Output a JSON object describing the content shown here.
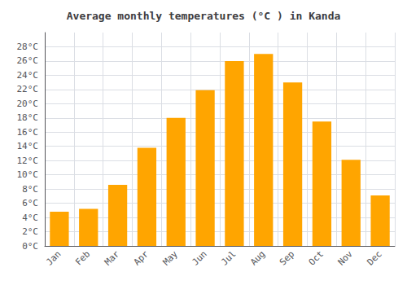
{
  "chart_data": {
    "type": "bar",
    "title": "Average monthly temperatures (°C ) in Kanda",
    "categories": [
      "Jan",
      "Feb",
      "Mar",
      "Apr",
      "May",
      "Jun",
      "Jul",
      "Aug",
      "Sep",
      "Oct",
      "Nov",
      "Dec"
    ],
    "values": [
      4.8,
      5.2,
      8.6,
      13.8,
      18.0,
      21.9,
      26.0,
      27.0,
      23.0,
      17.5,
      12.1,
      7.1
    ],
    "color": "#FFA500",
    "ylim": [
      0,
      30
    ],
    "yticks": [
      {
        "value": 0,
        "label": "0°C"
      },
      {
        "value": 2,
        "label": "2°C"
      },
      {
        "value": 4,
        "label": "4°C"
      },
      {
        "value": 6,
        "label": "6°C"
      },
      {
        "value": 8,
        "label": "8°C"
      },
      {
        "value": 10,
        "label": "10°C"
      },
      {
        "value": 12,
        "label": "12°C"
      },
      {
        "value": 14,
        "label": "14°C"
      },
      {
        "value": 16,
        "label": "16°C"
      },
      {
        "value": 18,
        "label": "18°C"
      },
      {
        "value": 20,
        "label": "20°C"
      },
      {
        "value": 22,
        "label": "22°C"
      },
      {
        "value": 24,
        "label": "24°C"
      },
      {
        "value": 26,
        "label": "26°C"
      },
      {
        "value": 28,
        "label": "28°C"
      }
    ],
    "grid": true
  }
}
